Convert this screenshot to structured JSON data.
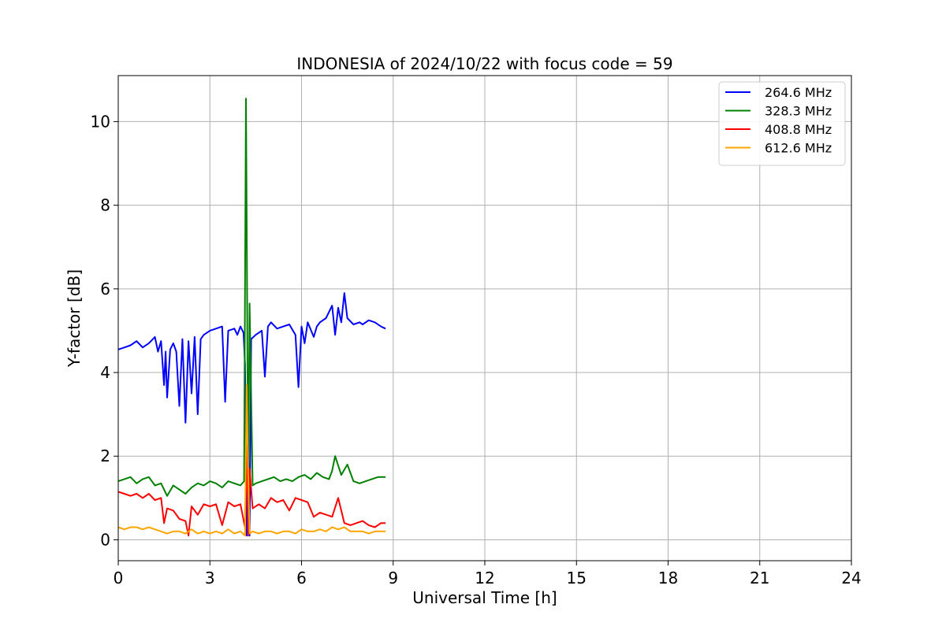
{
  "chart_data": {
    "type": "line",
    "title": "INDONESIA of 2024/10/22 with focus code = 59",
    "xlabel": "Universal Time [h]",
    "ylabel": "Y-factor [dB]",
    "xlim": [
      0,
      24
    ],
    "ylim": [
      -0.5,
      11.1
    ],
    "xticks": [
      0,
      3,
      6,
      9,
      12,
      15,
      18,
      21,
      24
    ],
    "xtick_labels": [
      "0",
      "3",
      "6",
      "9",
      "12",
      "15",
      "18",
      "21",
      "24"
    ],
    "yticks": [
      0,
      2,
      4,
      6,
      8,
      10
    ],
    "ytick_labels": [
      "0",
      "2",
      "4",
      "6",
      "8",
      "10"
    ],
    "grid": true,
    "legend_position": "top-right",
    "series": [
      {
        "name": "264.6 MHz",
        "color": "#0000ff",
        "x": [
          0.0,
          0.2,
          0.4,
          0.6,
          0.8,
          1.0,
          1.2,
          1.3,
          1.4,
          1.5,
          1.55,
          1.6,
          1.7,
          1.8,
          1.9,
          2.0,
          2.1,
          2.2,
          2.3,
          2.4,
          2.5,
          2.6,
          2.7,
          2.8,
          3.0,
          3.2,
          3.4,
          3.5,
          3.6,
          3.8,
          3.9,
          4.0,
          4.1,
          4.15,
          4.2,
          4.25,
          4.3,
          4.35,
          4.5,
          4.7,
          4.8,
          4.9,
          5.0,
          5.2,
          5.4,
          5.6,
          5.8,
          5.9,
          6.0,
          6.1,
          6.2,
          6.4,
          6.5,
          6.6,
          6.8,
          7.0,
          7.1,
          7.2,
          7.3,
          7.4,
          7.5,
          7.7,
          7.9,
          8.0,
          8.2,
          8.4,
          8.6,
          8.75
        ],
        "y": [
          4.55,
          4.6,
          4.65,
          4.75,
          4.6,
          4.7,
          4.85,
          4.5,
          4.75,
          3.7,
          4.5,
          3.4,
          4.55,
          4.7,
          4.5,
          3.2,
          4.8,
          2.8,
          4.75,
          3.5,
          4.85,
          3.0,
          4.8,
          4.9,
          5.0,
          5.05,
          5.1,
          3.3,
          5.0,
          5.05,
          4.9,
          5.1,
          4.95,
          4.2,
          0.1,
          2.4,
          0.1,
          4.8,
          4.9,
          5.0,
          3.9,
          5.1,
          5.2,
          5.05,
          5.1,
          5.15,
          4.9,
          3.65,
          5.1,
          4.7,
          5.2,
          4.85,
          5.1,
          5.2,
          5.3,
          5.6,
          4.9,
          5.55,
          5.2,
          5.9,
          5.3,
          5.15,
          5.2,
          5.15,
          5.25,
          5.2,
          5.1,
          5.05
        ]
      },
      {
        "name": "328.3 MHz",
        "color": "#008000",
        "x": [
          0.0,
          0.2,
          0.4,
          0.6,
          0.8,
          1.0,
          1.2,
          1.4,
          1.6,
          1.8,
          2.0,
          2.2,
          2.4,
          2.6,
          2.8,
          3.0,
          3.2,
          3.4,
          3.6,
          3.8,
          4.0,
          4.12,
          4.18,
          4.22,
          4.25,
          4.3,
          4.4,
          4.5,
          4.7,
          4.9,
          5.1,
          5.3,
          5.5,
          5.7,
          5.9,
          6.1,
          6.3,
          6.5,
          6.7,
          6.9,
          7.0,
          7.1,
          7.3,
          7.5,
          7.7,
          7.9,
          8.1,
          8.3,
          8.5,
          8.75
        ],
        "y": [
          1.4,
          1.45,
          1.5,
          1.35,
          1.45,
          1.5,
          1.3,
          1.35,
          1.05,
          1.3,
          1.2,
          1.1,
          1.25,
          1.35,
          1.3,
          1.4,
          1.35,
          1.25,
          1.4,
          1.35,
          1.3,
          1.4,
          10.55,
          5.8,
          0.8,
          5.65,
          1.3,
          1.35,
          1.4,
          1.45,
          1.5,
          1.4,
          1.45,
          1.4,
          1.5,
          1.55,
          1.45,
          1.6,
          1.5,
          1.45,
          1.65,
          2.0,
          1.55,
          1.8,
          1.4,
          1.35,
          1.4,
          1.45,
          1.5,
          1.5
        ]
      },
      {
        "name": "408.8 MHz",
        "color": "#ff0000",
        "x": [
          0.0,
          0.2,
          0.4,
          0.6,
          0.8,
          1.0,
          1.2,
          1.4,
          1.5,
          1.6,
          1.8,
          2.0,
          2.2,
          2.3,
          2.4,
          2.6,
          2.8,
          3.0,
          3.2,
          3.4,
          3.6,
          3.8,
          4.0,
          4.15,
          4.2,
          4.25,
          4.3,
          4.4,
          4.6,
          4.8,
          5.0,
          5.2,
          5.4,
          5.6,
          5.8,
          6.0,
          6.2,
          6.4,
          6.6,
          6.8,
          7.0,
          7.2,
          7.4,
          7.6,
          7.8,
          8.0,
          8.2,
          8.4,
          8.6,
          8.75
        ],
        "y": [
          1.15,
          1.1,
          1.05,
          1.1,
          1.0,
          1.1,
          0.95,
          1.0,
          0.4,
          0.75,
          0.7,
          0.5,
          0.45,
          0.1,
          0.8,
          0.6,
          0.85,
          0.8,
          0.85,
          0.35,
          0.9,
          0.8,
          0.85,
          0.3,
          2.3,
          0.1,
          1.7,
          0.75,
          0.85,
          0.75,
          1.0,
          0.9,
          0.95,
          0.7,
          1.0,
          0.95,
          0.9,
          0.55,
          0.65,
          0.6,
          0.55,
          1.0,
          0.4,
          0.35,
          0.4,
          0.45,
          0.35,
          0.3,
          0.4,
          0.4
        ]
      },
      {
        "name": "612.6 MHz",
        "color": "#ffa500",
        "x": [
          0.0,
          0.2,
          0.4,
          0.6,
          0.8,
          1.0,
          1.2,
          1.4,
          1.6,
          1.8,
          2.0,
          2.2,
          2.4,
          2.6,
          2.8,
          3.0,
          3.2,
          3.4,
          3.6,
          3.8,
          4.0,
          4.15,
          4.2,
          4.25,
          4.3,
          4.4,
          4.6,
          4.8,
          5.0,
          5.2,
          5.4,
          5.6,
          5.8,
          6.0,
          6.2,
          6.4,
          6.6,
          6.8,
          7.0,
          7.2,
          7.4,
          7.6,
          7.8,
          8.0,
          8.2,
          8.4,
          8.6,
          8.75
        ],
        "y": [
          0.3,
          0.25,
          0.3,
          0.3,
          0.25,
          0.3,
          0.25,
          0.2,
          0.15,
          0.2,
          0.2,
          0.15,
          0.25,
          0.15,
          0.2,
          0.15,
          0.2,
          0.15,
          0.25,
          0.15,
          0.2,
          0.1,
          3.7,
          1.7,
          0.15,
          0.2,
          0.15,
          0.2,
          0.2,
          0.15,
          0.2,
          0.2,
          0.15,
          0.25,
          0.2,
          0.2,
          0.25,
          0.2,
          0.3,
          0.25,
          0.3,
          0.2,
          0.2,
          0.2,
          0.15,
          0.2,
          0.2,
          0.2
        ]
      }
    ]
  }
}
